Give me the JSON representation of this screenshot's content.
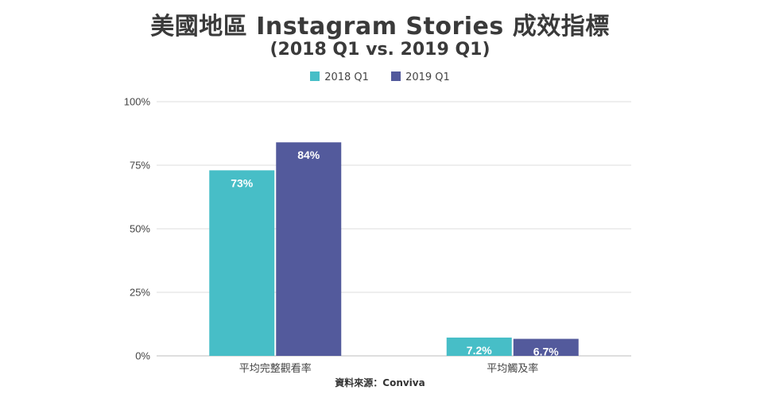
{
  "chart_data": {
    "type": "bar",
    "title": "美國地區 Instagram Stories 成效指標",
    "subtitle": "(2018 Q1 vs. 2019 Q1)",
    "categories": [
      "平均完整觀看率",
      "平均觸及率"
    ],
    "series": [
      {
        "name": "2018 Q1",
        "color": "#47bec7",
        "values": [
          73,
          7.2
        ],
        "labels": [
          "73%",
          "7.2%"
        ]
      },
      {
        "name": "2019 Q1",
        "color": "#535a9c",
        "values": [
          84,
          6.7
        ],
        "labels": [
          "84%",
          "6.7%"
        ]
      }
    ],
    "ylim": [
      0,
      100
    ],
    "yticks": [
      0,
      25,
      50,
      75,
      100
    ],
    "ytick_labels": [
      "0%",
      "25%",
      "50%",
      "75%",
      "100%"
    ],
    "grid": true,
    "legend_position": "top-center",
    "source": "資料來源：Conviva"
  }
}
